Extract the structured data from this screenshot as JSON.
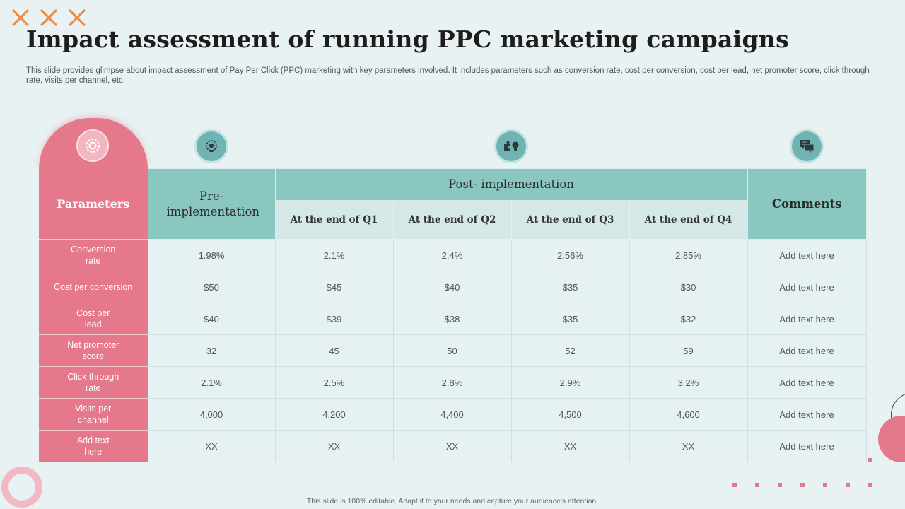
{
  "title": "Impact assessment of running PPC marketing campaigns",
  "subtitle": "This slide provides glimpse about impact assessment of Pay Per Click (PPC) marketing with key parameters involved. It includes parameters such as conversion rate, cost per conversion, cost per lead, net promoter score, click through rate, visits per channel, etc.",
  "icons": {
    "decor": "close-x-icon",
    "parameters": "gear-icon",
    "pre": "lightbulb-gear-icon",
    "post": "puzzle-lightbulb-icon",
    "comments": "chat-bubbles-icon"
  },
  "colors": {
    "accent_pink": "#e5788a",
    "teal": "#8bc7c1",
    "orange_decor": "#f08a4b",
    "background": "#e8f2f3"
  },
  "table": {
    "header": {
      "parameters": "Parameters",
      "pre": "Pre- implementation",
      "post": "Post- implementation",
      "quarters": [
        "At the end of Q1",
        "At the end of Q2",
        "At the end of Q3",
        "At the end of Q4"
      ],
      "comments": "Comments"
    },
    "rows": [
      {
        "label": "Conversion rate",
        "pre": "1.98%",
        "q": [
          "2.1%",
          "2.4%",
          "2.56%",
          "2.85%"
        ],
        "comment": "Add text here"
      },
      {
        "label": "Cost per conversion",
        "pre": "$50",
        "q": [
          "$45",
          "$40",
          "$35",
          "$30"
        ],
        "comment": "Add text here"
      },
      {
        "label": "Cost per lead",
        "pre": "$40",
        "q": [
          "$39",
          "$38",
          "$35",
          "$32"
        ],
        "comment": "Add text here"
      },
      {
        "label": "Net promoter score",
        "pre": "32",
        "q": [
          "45",
          "50",
          "52",
          "59"
        ],
        "comment": "Add text here"
      },
      {
        "label": "Click through rate",
        "pre": "2.1%",
        "q": [
          "2.5%",
          "2.8%",
          "2.9%",
          "3.2%"
        ],
        "comment": "Add text here"
      },
      {
        "label": "Visits per channel",
        "pre": "4,000",
        "q": [
          "4,200",
          "4,400",
          "4,500",
          "4,600"
        ],
        "comment": "Add text here"
      },
      {
        "label": "Add text here",
        "pre": "XX",
        "q": [
          "XX",
          "XX",
          "XX",
          "XX"
        ],
        "comment": "Add text here"
      }
    ]
  },
  "footer": "This slide is 100% editable. Adapt it to your needs and capture your audience's attention."
}
